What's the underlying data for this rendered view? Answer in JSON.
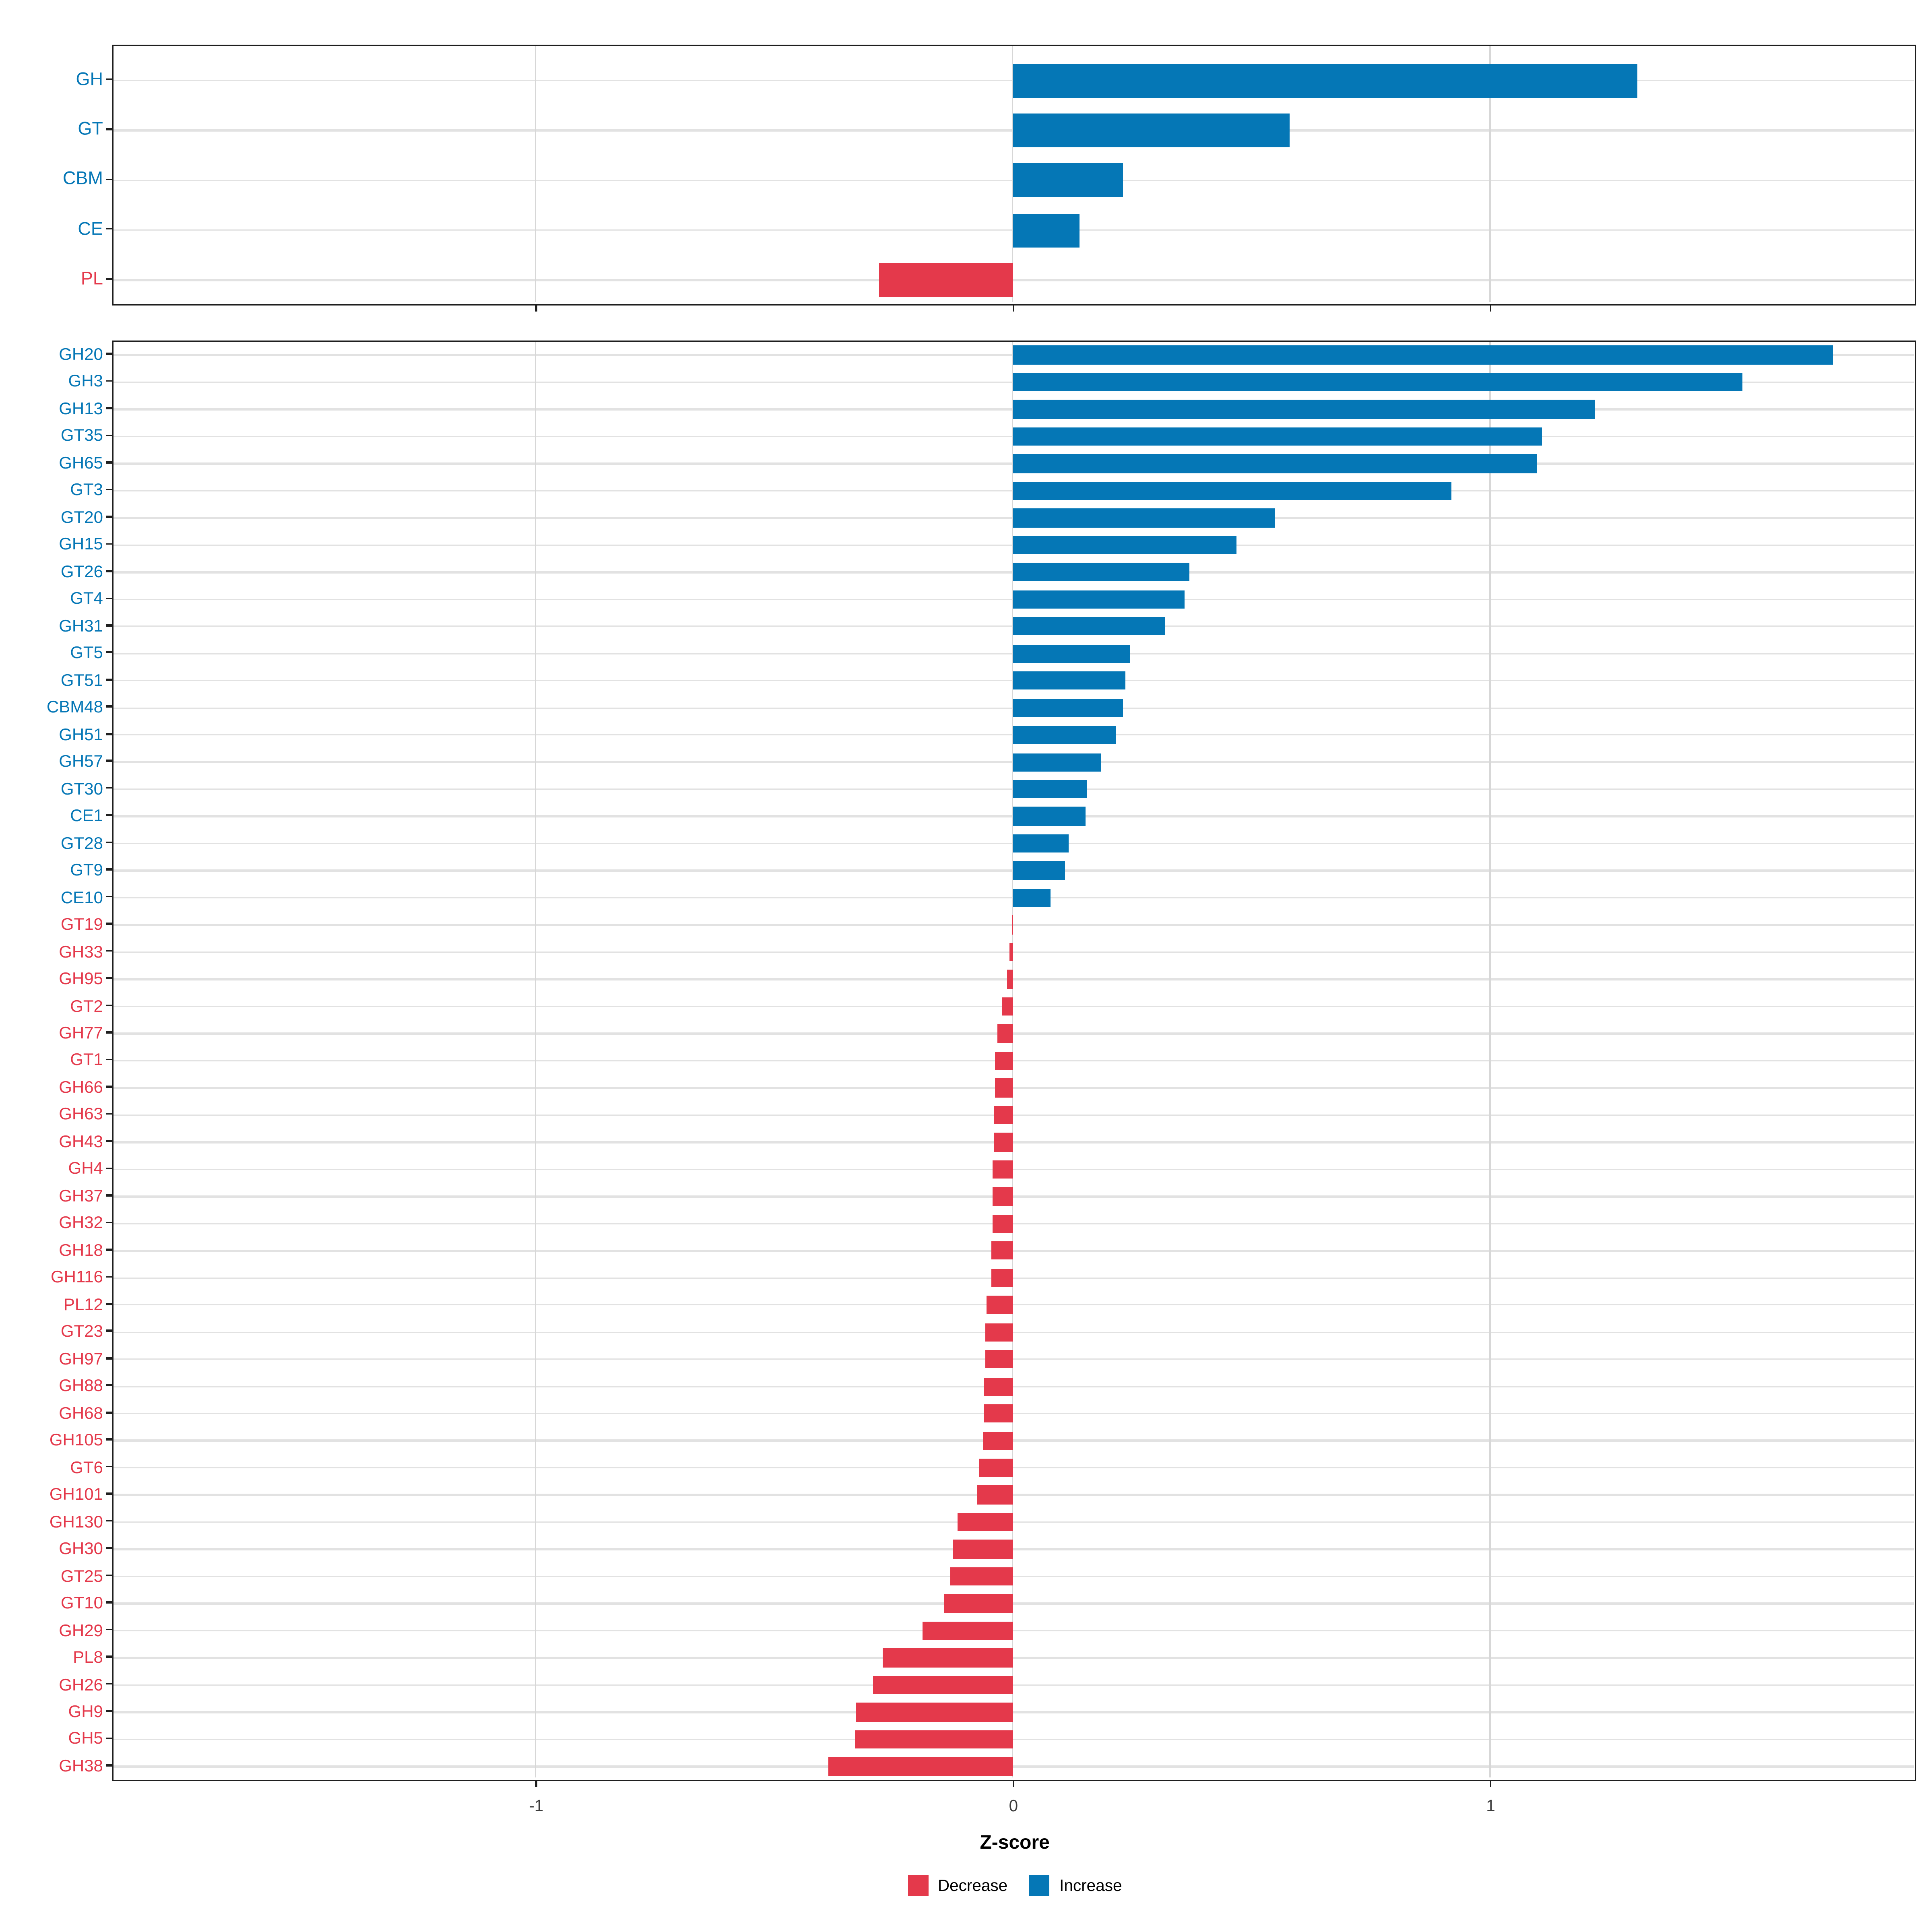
{
  "chart_data": {
    "type": "bar",
    "orientation": "horizontal",
    "title": "",
    "xlabel": "Z-score",
    "ylabel": "",
    "xlim": [
      -1.89,
      1.89
    ],
    "x_ticks": [
      -1,
      0,
      1
    ],
    "x_tick_labels": [
      "-1",
      "0",
      "1"
    ],
    "grid": true,
    "legend_position": "bottom",
    "colors": {
      "increase": "#0577B6",
      "decrease": "#E4394B"
    },
    "legend": {
      "items": [
        {
          "label": "Decrease",
          "color": "#E4394B"
        },
        {
          "label": "Increase",
          "color": "#0577B6"
        }
      ]
    },
    "panels": [
      {
        "name": "cazy-class-summary",
        "categories": [
          "GH",
          "GT",
          "CBM",
          "CE",
          "PL"
        ],
        "values": [
          1.31,
          0.58,
          0.23,
          0.14,
          -0.28
        ]
      },
      {
        "name": "cazy-family-detail",
        "categories": [
          "GH20",
          "GH3",
          "GH13",
          "GT35",
          "GH65",
          "GT3",
          "GT20",
          "GH15",
          "GT26",
          "GT4",
          "GH31",
          "GT5",
          "GT51",
          "CBM48",
          "GH51",
          "GH57",
          "GT30",
          "CE1",
          "GT28",
          "GT9",
          "CE10",
          "GT19",
          "GH33",
          "GH95",
          "GT2",
          "GH77",
          "GT1",
          "GH66",
          "GH63",
          "GH43",
          "GH4",
          "GH37",
          "GH32",
          "GH18",
          "GH116",
          "PL12",
          "GT23",
          "GH97",
          "GH88",
          "GH68",
          "GH105",
          "GT6",
          "GH101",
          "GH130",
          "GH30",
          "GT25",
          "GT10",
          "GH29",
          "PL8",
          "GH26",
          "GH9",
          "GH5",
          "GH38"
        ],
        "values": [
          1.72,
          1.53,
          1.22,
          1.11,
          1.1,
          0.92,
          0.55,
          0.47,
          0.37,
          0.36,
          0.32,
          0.245,
          0.235,
          0.23,
          0.215,
          0.185,
          0.156,
          0.153,
          0.118,
          0.11,
          0.08,
          -0.003,
          -0.007,
          -0.011,
          -0.021,
          -0.032,
          -0.037,
          -0.038,
          -0.039,
          -0.04,
          -0.041,
          -0.042,
          -0.043,
          -0.044,
          -0.046,
          -0.056,
          -0.057,
          -0.058,
          -0.059,
          -0.06,
          -0.062,
          -0.07,
          -0.074,
          -0.115,
          -0.125,
          -0.131,
          -0.144,
          -0.19,
          -0.272,
          -0.292,
          -0.328,
          -0.33,
          -0.386
        ]
      }
    ]
  }
}
